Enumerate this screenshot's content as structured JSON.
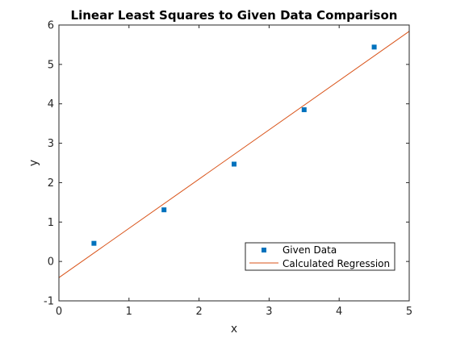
{
  "chart_data": {
    "type": "scatter",
    "title": "Linear Least Squares to Given Data Comparison",
    "xlabel": "x",
    "ylabel": "y",
    "xlim": [
      0,
      5
    ],
    "ylim": [
      -1,
      6
    ],
    "xticks": [
      "0",
      "1",
      "2",
      "3",
      "4",
      "5"
    ],
    "yticks": [
      "-1",
      "0",
      "1",
      "2",
      "3",
      "4",
      "5",
      "6"
    ],
    "grid": false,
    "legend_position": "bottom-right",
    "series": [
      {
        "name": "Given Data",
        "kind": "scatter",
        "color": "#0072BD",
        "x": [
          0.5,
          1.5,
          2.5,
          3.5,
          4.5
        ],
        "y": [
          0.46,
          1.31,
          2.47,
          3.85,
          5.44
        ]
      },
      {
        "name": "Calculated Regression",
        "kind": "line",
        "color": "#D95319",
        "x": [
          0,
          5
        ],
        "y": [
          -0.41,
          5.84
        ]
      }
    ]
  }
}
